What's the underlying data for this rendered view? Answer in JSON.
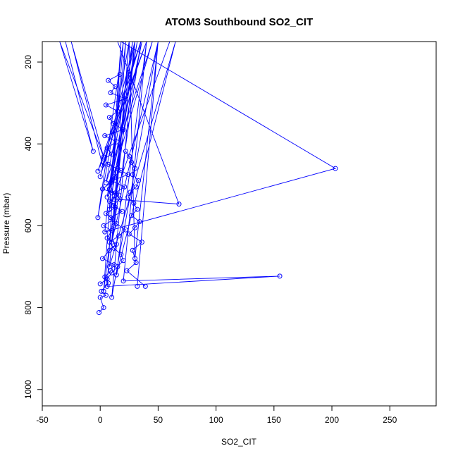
{
  "chart_data": {
    "type": "line",
    "title": "ATOM3 Southbound SO2_CIT",
    "xlabel": "SO2_CIT",
    "ylabel": "Pressure (mbar)",
    "xlim": [
      -50,
      290
    ],
    "ylim": [
      1040,
      150
    ],
    "y_reversed": true,
    "x_ticks": [
      -50,
      0,
      50,
      100,
      150,
      200,
      250
    ],
    "y_ticks": [
      200,
      400,
      600,
      800,
      1000
    ],
    "grid": false,
    "series_color": "#0000ff",
    "marker": "open-circle",
    "series": [
      {
        "x": [
          -30,
          -6,
          -35,
          3,
          -25,
          2,
          40,
          -2,
          35,
          0,
          30,
          5,
          45,
          8,
          32,
          10,
          36,
          6,
          28,
          12,
          68,
          15,
          60,
          8,
          20,
          -2,
          25,
          12,
          22,
          4,
          203,
          18,
          35,
          10,
          50,
          30,
          25,
          8,
          65,
          14,
          40,
          20,
          155,
          6,
          18,
          3,
          30,
          10,
          50,
          32
        ],
        "y": [
          150,
          418,
          150,
          432,
          150,
          452,
          150,
          467,
          150,
          480,
          150,
          495,
          150,
          510,
          150,
          520,
          150,
          530,
          150,
          535,
          547,
          150,
          150,
          560,
          150,
          580,
          150,
          600,
          150,
          615,
          460,
          150,
          150,
          640,
          150,
          680,
          150,
          700,
          150,
          720,
          150,
          735,
          723,
          748,
          150,
          760,
          150,
          775,
          150,
          748
        ]
      },
      {
        "x": [
          -1,
          3,
          0,
          5,
          1,
          7,
          4,
          9,
          12,
          2,
          8,
          14,
          6,
          10,
          3,
          11,
          5,
          13,
          8,
          16,
          2,
          9,
          12,
          18,
          7,
          3,
          10,
          6,
          14,
          4,
          20,
          11,
          8,
          15,
          5,
          22,
          9,
          13,
          7,
          17
        ],
        "y": [
          812,
          800,
          775,
          770,
          760,
          740,
          725,
          710,
          695,
          680,
          660,
          645,
          630,
          612,
          600,
          585,
          570,
          555,
          540,
          525,
          510,
          495,
          480,
          465,
          450,
          437,
          425,
          410,
          395,
          380,
          365,
          350,
          335,
          320,
          305,
          290,
          275,
          260,
          245,
          230
        ]
      },
      {
        "x": [
          22,
          25,
          27,
          30,
          28,
          33,
          31,
          26,
          24,
          29,
          32,
          27,
          34,
          30,
          25,
          36,
          28,
          31,
          23,
          39
        ],
        "y": [
          418,
          430,
          445,
          460,
          475,
          490,
          505,
          518,
          530,
          545,
          560,
          575,
          590,
          605,
          620,
          640,
          660,
          690,
          710,
          748
        ]
      },
      {
        "x": [
          0,
          6,
          10,
          15,
          20,
          18,
          12,
          8,
          16,
          22,
          14,
          9,
          19,
          11,
          17,
          13,
          21,
          10,
          24,
          15
        ],
        "y": [
          742,
          730,
          715,
          700,
          685,
          670,
          655,
          640,
          625,
          610,
          595,
          580,
          565,
          550,
          535,
          520,
          505,
          490,
          475,
          460
        ]
      }
    ]
  }
}
